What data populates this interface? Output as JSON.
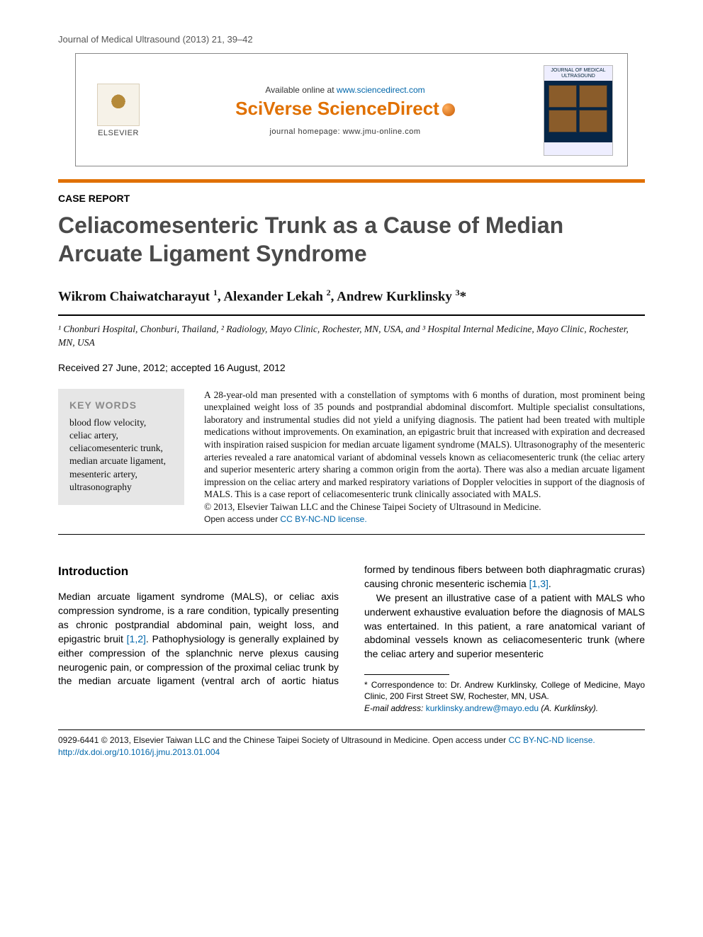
{
  "running_head": "Journal of Medical Ultrasound (2013) 21, 39–42",
  "header": {
    "available": "Available online at ",
    "available_link": "www.sciencedirect.com",
    "sd_logo": "SciVerse ScienceDirect",
    "homepage": "journal homepage: www.jmu-online.com",
    "cover_title": "JOURNAL OF MEDICAL ULTRASOUND",
    "elsevier": "ELSEVIER"
  },
  "article_type": "CASE REPORT",
  "title": "Celiacomesenteric Trunk as a Cause of Median Arcuate Ligament Syndrome",
  "authors_html": "Wikrom Chaiwatcharayut <sup>1</sup>, Alexander Lekah <sup>2</sup>, Andrew Kurklinsky <sup>3</sup>*",
  "affiliations": "¹ Chonburi Hospital, Chonburi, Thailand, ² Radiology, Mayo Clinic, Rochester, MN, USA, and ³ Hospital Internal Medicine, Mayo Clinic, Rochester, MN, USA",
  "dates": "Received 27 June, 2012; accepted 16 August, 2012",
  "keywords": {
    "heading": "KEY WORDS",
    "items": [
      "blood flow velocity,",
      "celiac artery,",
      "celiacomesenteric trunk,",
      "median arcuate ligament,",
      "mesenteric artery,",
      "ultrasonography"
    ]
  },
  "abstract": {
    "text": "A 28-year-old man presented with a constellation of symptoms with 6 months of duration, most prominent being unexplained weight loss of 35 pounds and postprandial abdominal discomfort. Multiple specialist consultations, laboratory and instrumental studies did not yield a unifying diagnosis. The patient had been treated with multiple medications without improvements. On examination, an epigastric bruit that increased with expiration and decreased with inspiration raised suspicion for median arcuate ligament syndrome (MALS). Ultrasonography of the mesenteric arteries revealed a rare anatomical variant of abdominal vessels known as celiacomesenteric trunk (the celiac artery and superior mesenteric artery sharing a common origin from the aorta). There was also a median arcuate ligament impression on the celiac artery and marked respiratory variations of Doppler velocities in support of the diagnosis of MALS. This is a case report of celiacomesenteric trunk clinically associated with MALS.",
    "copyright": "© 2013, Elsevier Taiwan LLC and the Chinese Taipei Society of Ultrasound in Medicine.",
    "oa_text": "Open access under ",
    "oa_link": "CC BY-NC-ND license."
  },
  "intro": {
    "heading": "Introduction",
    "para1_a": "Median arcuate ligament syndrome (MALS), or celiac axis compression syndrome, is a rare condition, typically presenting as chronic postprandial abdominal pain, weight loss, and epigastric bruit ",
    "para1_ref1": "[1,2]",
    "para1_b": ". Pathophysiology is generally explained by either compression of the splanchnic nerve plexus causing neurogenic pain, or compression of the proximal celiac trunk by the median arcuate ligament (ventral arch of aortic hiatus formed by tendinous fibers between both diaphragmatic cruras) causing chronic mesenteric ischemia ",
    "para1_ref2": "[1,3]",
    "para1_c": ".",
    "para2": "We present an illustrative case of a patient with MALS who underwent exhaustive evaluation before the diagnosis of MALS was entertained. In this patient, a rare anatomical variant of abdominal vessels known as celiacomesenteric trunk (where the celiac artery and superior mesenteric"
  },
  "footnotes": {
    "corr": "* Correspondence to: Dr. Andrew Kurklinsky, College of Medicine, Mayo Clinic, 200 First Street SW, Rochester, MN, USA.",
    "email_label": "E-mail address:",
    "email": "kurklinsky.andrew@mayo.edu",
    "email_name": "(A. Kurklinsky)."
  },
  "footer": {
    "line1_a": "0929-6441 © 2013, Elsevier Taiwan LLC and the Chinese Taipei Society of Ultrasound in Medicine. ",
    "line1_oa": "Open access under ",
    "line1_link": "CC BY-NC-ND license.",
    "doi": "http://dx.doi.org/10.1016/j.jmu.2013.01.004"
  },
  "colors": {
    "orange": "#e07000",
    "link": "#0066aa",
    "kw_bg": "#e6e6e6",
    "title_gray": "#4a4a4a"
  }
}
